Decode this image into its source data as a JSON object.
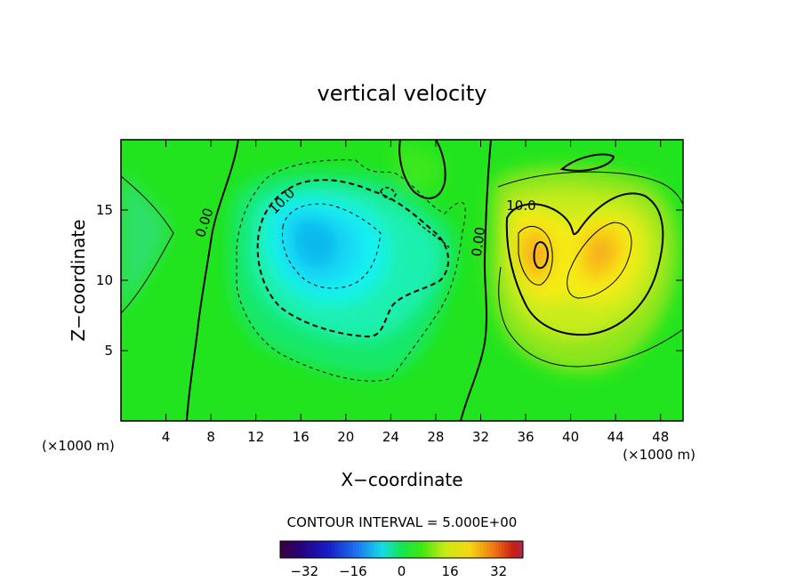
{
  "chart_data": {
    "type": "heatmap",
    "title": "vertical velocity",
    "xlabel": "X−coordinate",
    "ylabel": "Z−coordinate",
    "x_unit_left": "(×1000 m)",
    "x_unit_right": "(×1000 m)",
    "xlim": [
      0,
      50
    ],
    "ylim": [
      0,
      20
    ],
    "x_ticks": [
      4,
      8,
      12,
      16,
      20,
      24,
      28,
      32,
      36,
      40,
      44,
      48
    ],
    "y_ticks": [
      5,
      10,
      15
    ],
    "contour_interval_text": "CONTOUR INTERVAL = 5.000E+00",
    "contour_labels": [
      {
        "text": "0.00",
        "x": 7.8,
        "y": 14.0
      },
      {
        "text": "10.0",
        "x": 14.6,
        "y": 15.4
      },
      {
        "text": "0.00",
        "x": 32.2,
        "y": 12.7
      },
      {
        "text": "10.0",
        "x": 35.6,
        "y": 15.0
      }
    ],
    "colorbar": {
      "range": [
        -40,
        40
      ],
      "ticks": [
        -32,
        -16,
        0,
        16,
        32
      ]
    },
    "field_features": [
      {
        "kind": "min",
        "x": 18.0,
        "y": 12.5,
        "value": -22
      },
      {
        "kind": "max",
        "x": 37.0,
        "y": 11.5,
        "value": 16
      },
      {
        "kind": "max",
        "x": 43.0,
        "y": 12.0,
        "value": 14
      },
      {
        "kind": "min",
        "x": 2.5,
        "y": 11.5,
        "value": -5
      }
    ]
  }
}
